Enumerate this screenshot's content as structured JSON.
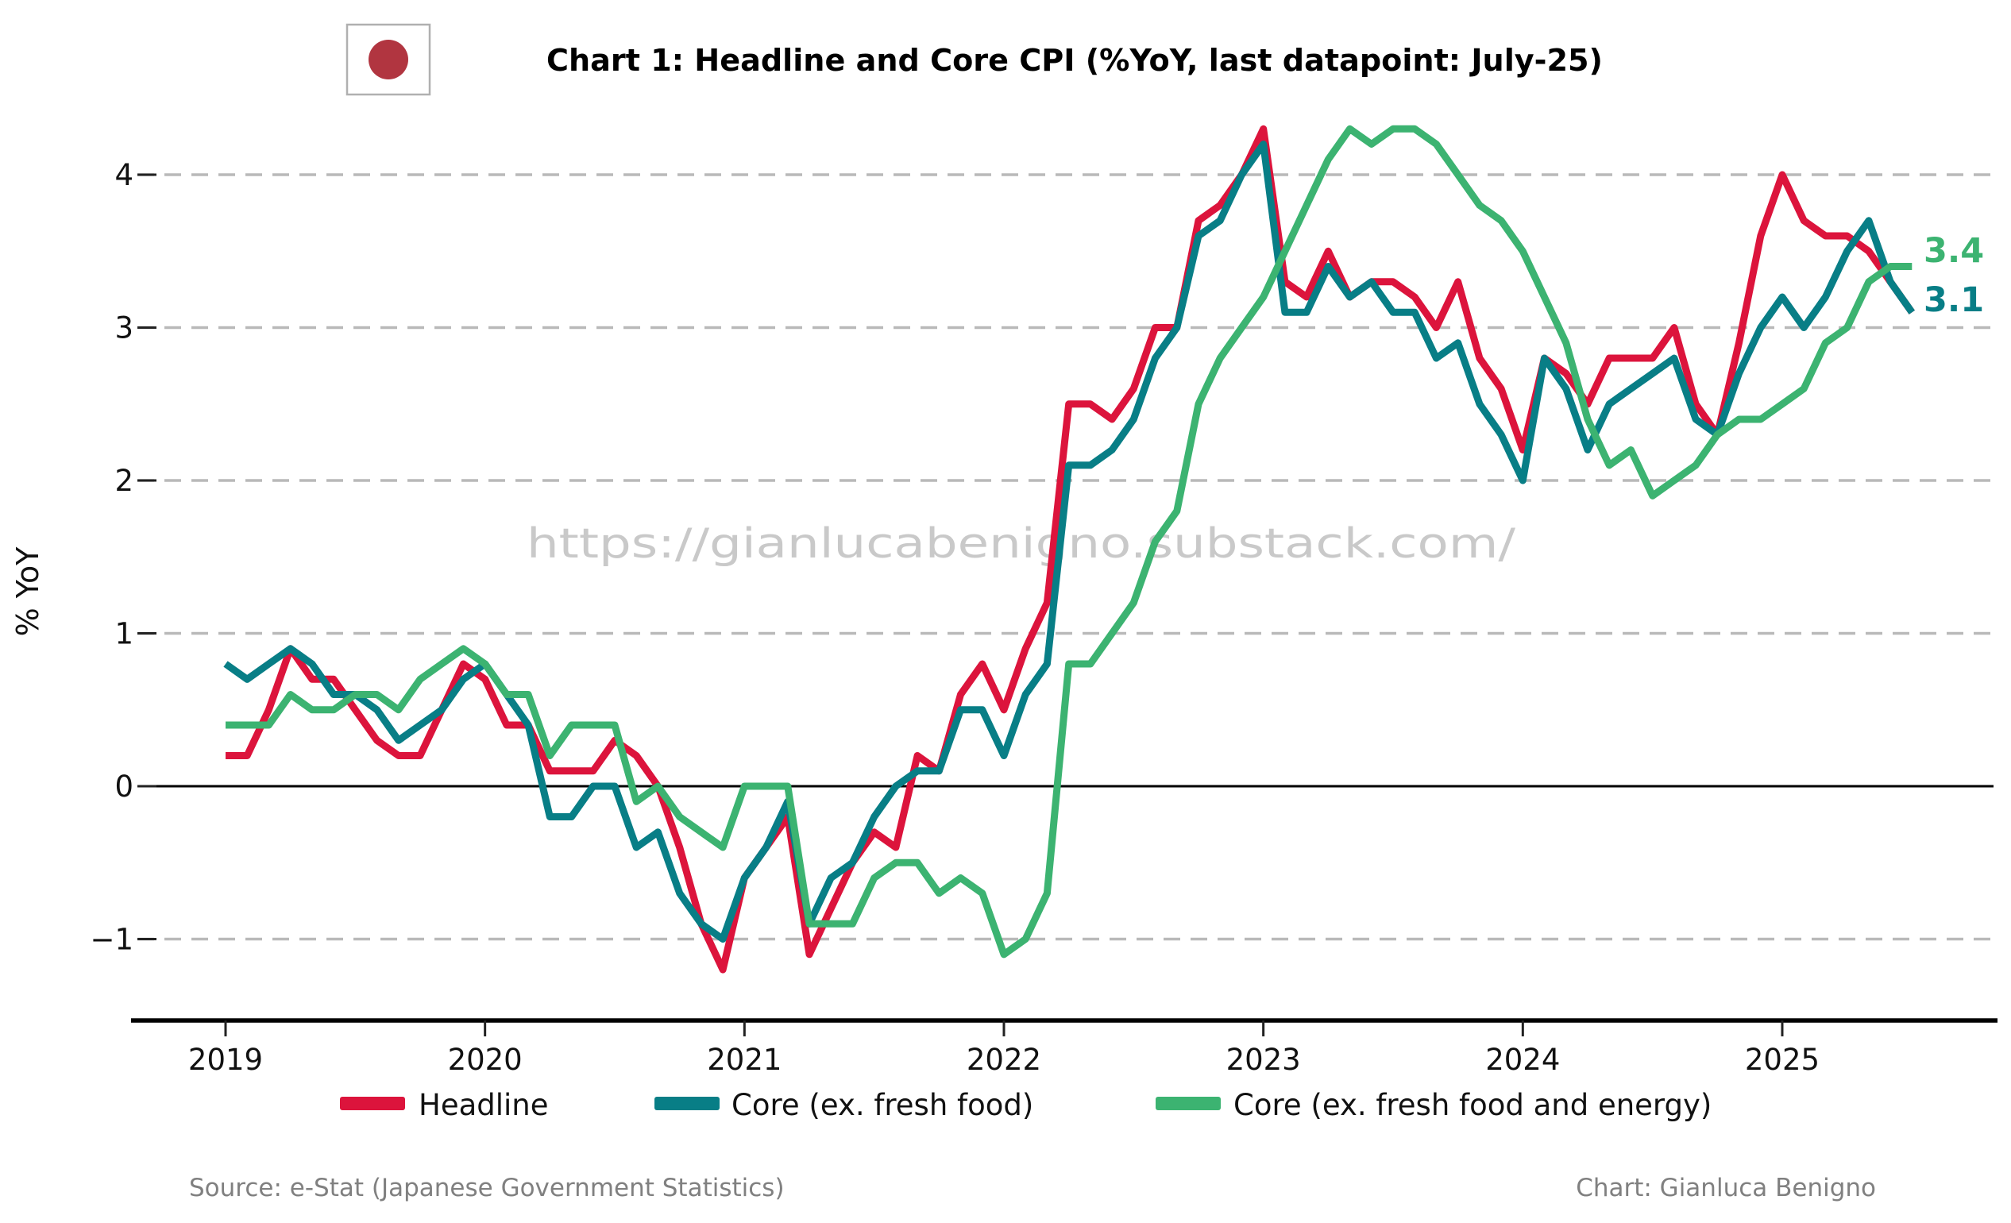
{
  "title": "Chart 1: Headline and Core CPI (%YoY, last datapoint: July-25)",
  "flag": {
    "name": "japan-flag-icon",
    "circle_color": "#B13540",
    "border_color": "#b0b0b0"
  },
  "watermark": "https://gianlucabenigno.substack.com/",
  "ylabel": "% YoY",
  "end_labels": [
    {
      "text": "3.4",
      "color": "#3CB371"
    },
    {
      "text": "3.1",
      "color": "#087E86"
    }
  ],
  "legend": {
    "items": [
      {
        "label": "Headline",
        "color": "#DC143C"
      },
      {
        "label": "Core (ex. fresh food)",
        "color": "#087E86"
      },
      {
        "label": "Core (ex. fresh food and energy)",
        "color": "#3CB371"
      }
    ]
  },
  "footer": {
    "source": "Source: e-Stat (Japanese Government Statistics)",
    "credit": "Chart: Gianluca Benigno"
  },
  "colors": {
    "headline": "#DC143C",
    "core": "#087E86",
    "core_core": "#3CB371",
    "gridline": "#b9b9b9",
    "zero_line": "#000000",
    "watermark": "#c9c9c9",
    "footer": "#808080"
  },
  "chart_data": {
    "type": "line",
    "title": "Chart 1: Headline and Core CPI (%YoY, last datapoint: July-25)",
    "xlabel": "",
    "ylabel": "% YoY",
    "ylim": [
      -1.5,
      4.6
    ],
    "grid": "horizontal-dashed",
    "legend_position": "bottom",
    "frequency": "monthly",
    "x_start": "2019-01",
    "x_end": "2025-07",
    "x_ticks": [
      "2019",
      "2020",
      "2021",
      "2022",
      "2023",
      "2024",
      "2025"
    ],
    "y_ticks": [
      4,
      3,
      2,
      1,
      0,
      -1
    ],
    "series": [
      {
        "name": "Headline",
        "color": "#DC143C",
        "values": [
          0.2,
          0.2,
          0.5,
          0.9,
          0.7,
          0.7,
          0.5,
          0.3,
          0.2,
          0.2,
          0.5,
          0.8,
          0.7,
          0.4,
          0.4,
          0.1,
          0.1,
          0.1,
          0.3,
          0.2,
          0.0,
          -0.4,
          -0.9,
          -1.2,
          -0.6,
          -0.4,
          -0.2,
          -1.1,
          -0.8,
          -0.5,
          -0.3,
          -0.4,
          0.2,
          0.1,
          0.6,
          0.8,
          0.5,
          0.9,
          1.2,
          2.5,
          2.5,
          2.4,
          2.6,
          3.0,
          3.0,
          3.7,
          3.8,
          4.0,
          4.3,
          3.3,
          3.2,
          3.5,
          3.2,
          3.3,
          3.3,
          3.2,
          3.0,
          3.3,
          2.8,
          2.6,
          2.2,
          2.8,
          2.7,
          2.5,
          2.8,
          2.8,
          2.8,
          3.0,
          2.5,
          2.3,
          2.9,
          3.6,
          4.0,
          3.7,
          3.6,
          3.6,
          3.5,
          3.3,
          3.1
        ]
      },
      {
        "name": "Core (ex. fresh food)",
        "color": "#087E86",
        "values": [
          0.8,
          0.7,
          0.8,
          0.9,
          0.8,
          0.6,
          0.6,
          0.5,
          0.3,
          0.4,
          0.5,
          0.7,
          0.8,
          0.6,
          0.4,
          -0.2,
          -0.2,
          0.0,
          0.0,
          -0.4,
          -0.3,
          -0.7,
          -0.9,
          -1.0,
          -0.6,
          -0.4,
          -0.1,
          -0.9,
          -0.6,
          -0.5,
          -0.2,
          0.0,
          0.1,
          0.1,
          0.5,
          0.5,
          0.2,
          0.6,
          0.8,
          2.1,
          2.1,
          2.2,
          2.4,
          2.8,
          3.0,
          3.6,
          3.7,
          4.0,
          4.2,
          3.1,
          3.1,
          3.4,
          3.2,
          3.3,
          3.1,
          3.1,
          2.8,
          2.9,
          2.5,
          2.3,
          2.0,
          2.8,
          2.6,
          2.2,
          2.5,
          2.6,
          2.7,
          2.8,
          2.4,
          2.3,
          2.7,
          3.0,
          3.2,
          3.0,
          3.2,
          3.5,
          3.7,
          3.3,
          3.1
        ]
      },
      {
        "name": "Core (ex. fresh food and energy)",
        "color": "#3CB371",
        "values": [
          0.4,
          0.4,
          0.4,
          0.6,
          0.5,
          0.5,
          0.6,
          0.6,
          0.5,
          0.7,
          0.8,
          0.9,
          0.8,
          0.6,
          0.6,
          0.2,
          0.4,
          0.4,
          0.4,
          -0.1,
          0.0,
          -0.2,
          -0.3,
          -0.4,
          0.0,
          0.0,
          0.0,
          -0.9,
          -0.9,
          -0.9,
          -0.6,
          -0.5,
          -0.5,
          -0.7,
          -0.6,
          -0.7,
          -1.1,
          -1.0,
          -0.7,
          0.8,
          0.8,
          1.0,
          1.2,
          1.6,
          1.8,
          2.5,
          2.8,
          3.0,
          3.2,
          3.5,
          3.8,
          4.1,
          4.3,
          4.2,
          4.3,
          4.3,
          4.2,
          4.0,
          3.8,
          3.7,
          3.5,
          3.2,
          2.9,
          2.4,
          2.1,
          2.2,
          1.9,
          2.0,
          2.1,
          2.3,
          2.4,
          2.4,
          2.5,
          2.6,
          2.9,
          3.0,
          3.3,
          3.4,
          3.4
        ]
      }
    ]
  }
}
